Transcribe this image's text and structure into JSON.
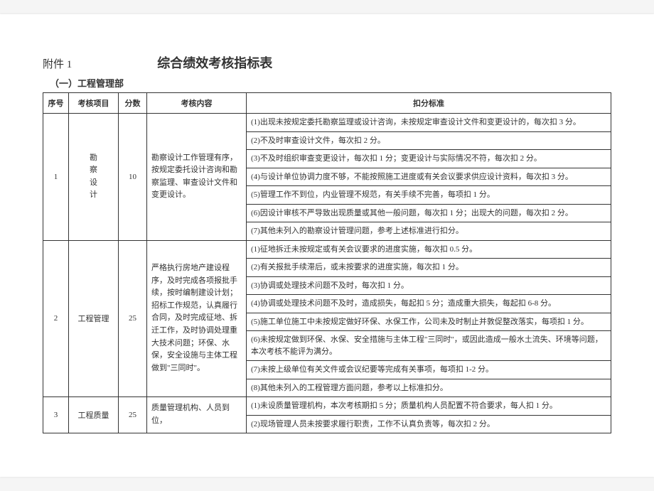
{
  "header": {
    "attachment": "附件 1",
    "title": "综合绩效考核指标表",
    "subtitle": "（一）工程管理部"
  },
  "columns": {
    "seq": "序号",
    "item": "考核项目",
    "score": "分数",
    "content": "考核内容",
    "criteria": "扣分标准"
  },
  "sections": [
    {
      "seq": "1",
      "item_lines": [
        "勘",
        "察",
        "设",
        "计"
      ],
      "score": "10",
      "content": "勘察设计工作管理有序，按规定委托设计咨询和勘察监理、审查设计文件和变更设计。",
      "criteria": [
        "(1)出现未按规定委托勘察监理或设计咨询，未按规定审查设计文件和变更设计的，每次扣 3 分。",
        "(2)不及时审查设计文件，每次扣 2 分。",
        "(3)不及时组织审查变更设计，每次扣 1 分；变更设计与实际情况不符，每次扣 2 分。",
        "(4)与设计单位协调力度不够，不能按照施工进度或有关会议要求供应设计资料，每次扣 3 分。",
        "(5)管理工作不到位，内业管理不规范，有关手续不完善，每项扣 1 分。",
        "(6)因设计审核不严导致出现质量或其他一般问题，每次扣 1 分；出现大的问题，每次扣 2 分。",
        "(7)其他未列入的勘察设计管理问题，参考上述标准进行扣分。"
      ]
    },
    {
      "seq": "2",
      "item": "工程管理",
      "score": "25",
      "content": "严格执行房地产建设程序，及时完成各项报批手续，按时编制建设计划；招标工作规范，认真履行合同，及时完成征地、拆迁工作，及时协调处理重大技术问题；环保、水保，安全设施与主体工程做到\"三同时\"。",
      "criteria": [
        "(1)征地拆迁未按规定或有关会议要求的进度实施，每次扣 0.5 分。",
        "(2)有关报批手续滞后，或未按要求的进度实施，每次扣 1 分。",
        "(3)协调或处理技术问题不及时，每次扣 1 分。",
        "(4)协调或处理技术问题不及时，造成损失，每起扣 5 分；造成重大损失，每起扣 6-8 分。",
        "(5)施工单位施工中未按规定做好环保、水保工作，公司未及时制止并敦促整改落实，每项扣 1 分。",
        "(6)未按规定做到环保、水保、安全措施与主体工程\"三同时\"，或因此造成一般水土流失、环境等问题，本次考核不能评为满分。",
        "(7)未按上级单位有关文件或会议纪要等完成有关事项，每项扣 1-2 分。",
        "(8)其他未列入的工程管理方面问题，参考以上标准扣分。"
      ]
    },
    {
      "seq": "3",
      "item": "工程质量",
      "score": "25",
      "content": "质量管理机构、人员到位，",
      "criteria": [
        "(1)未设质量管理机构，本次考核期扣 5 分；质量机构人员配置不符合要求，每人扣 1 分。",
        "(2)现场管理人员未按要求履行职责，工作不认真负责等，每次扣 2 分。"
      ]
    }
  ]
}
